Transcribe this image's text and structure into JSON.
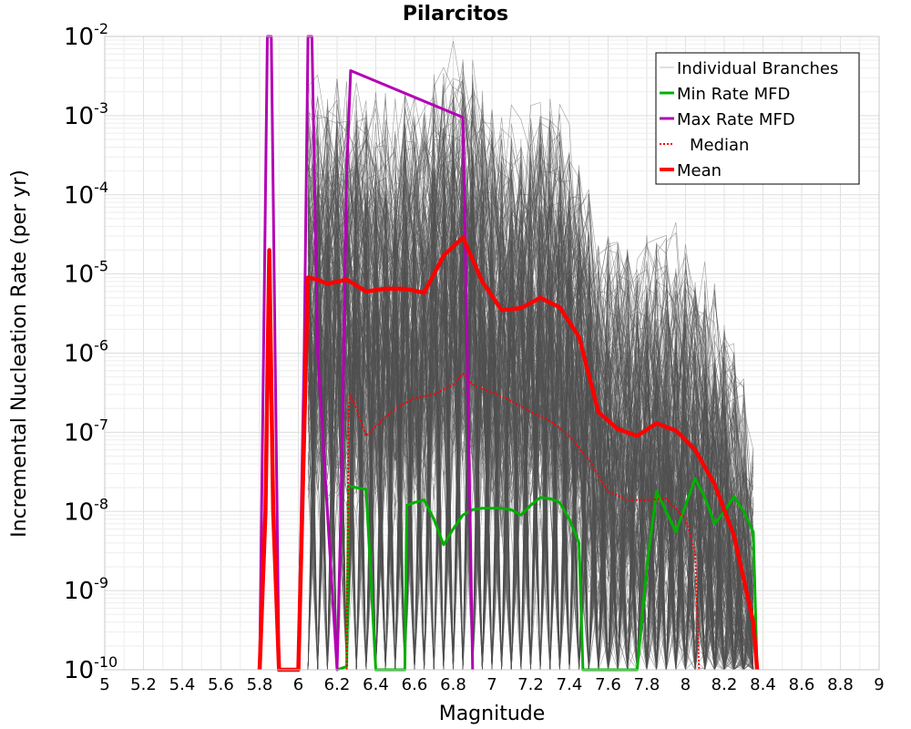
{
  "chart_data": {
    "type": "line",
    "title": "Pilarcitos",
    "xlabel": "Magnitude",
    "ylabel": "Incremental Nucleation Rate (per yr)",
    "xlim": [
      5,
      9
    ],
    "ylim": [
      1e-10,
      0.01
    ],
    "yscale": "log",
    "grid": true,
    "legend_position": "top-right",
    "x_ticks": [
      5,
      5.2,
      5.4,
      5.6,
      5.8,
      6,
      6.2,
      6.4,
      6.6,
      6.8,
      7,
      7.2,
      7.4,
      7.6,
      7.8,
      8,
      8.2,
      8.4,
      8.6,
      8.8,
      9
    ],
    "x_tick_labels": [
      "5",
      "5.2",
      "5.4",
      "5.6",
      "5.8",
      "6",
      "6.2",
      "6.4",
      "6.6",
      "6.8",
      "7",
      "7.2",
      "7.4",
      "7.6",
      "7.8",
      "8",
      "8.2",
      "8.4",
      "8.6",
      "8.8",
      "9"
    ],
    "y_ticks": [
      {
        "base": "10",
        "exp": "-10",
        "value": 1e-10
      },
      {
        "base": "10",
        "exp": "-9",
        "value": 1e-09
      },
      {
        "base": "10",
        "exp": "-8",
        "value": 1e-08
      },
      {
        "base": "10",
        "exp": "-7",
        "value": 1e-07
      },
      {
        "base": "10",
        "exp": "-6",
        "value": 1e-06
      },
      {
        "base": "10",
        "exp": "-5",
        "value": 1e-05
      },
      {
        "base": "10",
        "exp": "-4",
        "value": 0.0001
      },
      {
        "base": "10",
        "exp": "-3",
        "value": 0.001
      },
      {
        "base": "10",
        "exp": "-2",
        "value": 0.01
      }
    ],
    "series": [
      {
        "name": "Min Rate MFD",
        "color": "#00b000",
        "style": "solid",
        "points": [
          [
            6.2,
            1e-10
          ],
          [
            6.25,
            1.1e-10
          ],
          [
            6.26,
            2.1e-08
          ],
          [
            6.3,
            2e-08
          ],
          [
            6.35,
            1.9e-08
          ],
          [
            6.4,
            1e-10
          ],
          [
            6.55,
            1e-10
          ],
          [
            6.56,
            1.2e-08
          ],
          [
            6.6,
            1.3e-08
          ],
          [
            6.65,
            1.4e-08
          ],
          [
            6.7,
            8e-09
          ],
          [
            6.75,
            3.8e-09
          ],
          [
            6.8,
            6e-09
          ],
          [
            6.85,
            9e-09
          ],
          [
            6.9,
            1.05e-08
          ],
          [
            6.95,
            1.1e-08
          ],
          [
            7.0,
            1.1e-08
          ],
          [
            7.05,
            1.1e-08
          ],
          [
            7.1,
            1.05e-08
          ],
          [
            7.15,
            9e-09
          ],
          [
            7.2,
            1.2e-08
          ],
          [
            7.25,
            1.5e-08
          ],
          [
            7.3,
            1.45e-08
          ],
          [
            7.35,
            1.3e-08
          ],
          [
            7.4,
            8e-09
          ],
          [
            7.45,
            4e-09
          ],
          [
            7.47,
            1e-10
          ],
          [
            7.75,
            1e-10
          ],
          [
            7.8,
            2e-09
          ],
          [
            7.85,
            1.8e-08
          ],
          [
            7.9,
            1e-08
          ],
          [
            7.95,
            5.5e-09
          ],
          [
            8.0,
            1.2e-08
          ],
          [
            8.05,
            2.6e-08
          ],
          [
            8.1,
            1.5e-08
          ],
          [
            8.15,
            7e-09
          ],
          [
            8.2,
            1e-08
          ],
          [
            8.25,
            1.55e-08
          ],
          [
            8.3,
            1e-08
          ],
          [
            8.35,
            5.5e-09
          ],
          [
            8.37,
            1e-10
          ]
        ]
      },
      {
        "name": "Max Rate MFD",
        "color": "#b400b4",
        "style": "solid",
        "points": [
          [
            5.8,
            1e-10
          ],
          [
            5.82,
            1e-06
          ],
          [
            5.84,
            0.01
          ],
          [
            5.86,
            0.01
          ],
          [
            5.88,
            1e-06
          ],
          [
            5.9,
            1e-10
          ],
          [
            6.0,
            1e-10
          ],
          [
            6.03,
            1e-06
          ],
          [
            6.05,
            0.01
          ],
          [
            6.07,
            0.01
          ],
          [
            6.1,
            1e-06
          ],
          [
            6.2,
            1e-10
          ],
          [
            6.22,
            1e-08
          ],
          [
            6.25,
            0.0002
          ],
          [
            6.27,
            0.0037
          ],
          [
            6.85,
            0.00095
          ],
          [
            6.88,
            1e-07
          ],
          [
            6.9,
            1e-10
          ]
        ]
      },
      {
        "name": "Median",
        "color": "#ff0000",
        "style": "dotted",
        "points": [
          [
            6.25,
            1e-10
          ],
          [
            6.26,
            2e-07
          ],
          [
            6.27,
            3e-07
          ],
          [
            6.3,
            2e-07
          ],
          [
            6.35,
            9e-08
          ],
          [
            6.4,
            1.2e-07
          ],
          [
            6.5,
            2e-07
          ],
          [
            6.6,
            2.7e-07
          ],
          [
            6.7,
            3e-07
          ],
          [
            6.8,
            4e-07
          ],
          [
            6.85,
            5.5e-07
          ],
          [
            6.9,
            4e-07
          ],
          [
            7.0,
            3.2e-07
          ],
          [
            7.1,
            2.5e-07
          ],
          [
            7.2,
            1.8e-07
          ],
          [
            7.3,
            1.4e-07
          ],
          [
            7.4,
            9e-08
          ],
          [
            7.5,
            4.5e-08
          ],
          [
            7.6,
            1.8e-08
          ],
          [
            7.7,
            1.4e-08
          ],
          [
            7.8,
            1.4e-08
          ],
          [
            7.9,
            1.45e-08
          ],
          [
            8.0,
            8e-09
          ],
          [
            8.05,
            3e-09
          ],
          [
            8.07,
            1e-10
          ]
        ]
      },
      {
        "name": "Mean",
        "color": "#ff0000",
        "style": "solid",
        "points": [
          [
            5.8,
            1e-10
          ],
          [
            5.83,
            1e-08
          ],
          [
            5.85,
            2e-05
          ],
          [
            5.87,
            1e-08
          ],
          [
            5.9,
            1e-10
          ],
          [
            6.0,
            1e-10
          ],
          [
            6.05,
            9e-06
          ],
          [
            6.1,
            8.5e-06
          ],
          [
            6.15,
            7.5e-06
          ],
          [
            6.25,
            8.5e-06
          ],
          [
            6.35,
            6e-06
          ],
          [
            6.45,
            6.5e-06
          ],
          [
            6.55,
            6.5e-06
          ],
          [
            6.65,
            5.8e-06
          ],
          [
            6.75,
            1.7e-05
          ],
          [
            6.85,
            2.9e-05
          ],
          [
            6.95,
            8e-06
          ],
          [
            7.05,
            3.5e-06
          ],
          [
            7.15,
            3.7e-06
          ],
          [
            7.25,
            5e-06
          ],
          [
            7.35,
            3.8e-06
          ],
          [
            7.45,
            1.6e-06
          ],
          [
            7.55,
            1.8e-07
          ],
          [
            7.65,
            1.1e-07
          ],
          [
            7.75,
            9e-08
          ],
          [
            7.85,
            1.3e-07
          ],
          [
            7.95,
            1.05e-07
          ],
          [
            8.05,
            6e-08
          ],
          [
            8.15,
            2.2e-08
          ],
          [
            8.25,
            5e-09
          ],
          [
            8.35,
            4e-10
          ],
          [
            8.37,
            1e-10
          ]
        ]
      }
    ],
    "legend": [
      {
        "label": "Individual Branches",
        "color": "#c0c0c0",
        "style": "thin"
      },
      {
        "label": "Min Rate MFD",
        "color": "#00b000",
        "style": "solid"
      },
      {
        "label": "Max Rate MFD",
        "color": "#b400b4",
        "style": "solid"
      },
      {
        "label": "Median",
        "color": "#ff0000",
        "style": "dotted"
      },
      {
        "label": "Mean",
        "color": "#ff0000",
        "style": "thick"
      }
    ],
    "branches_color": "#505050"
  }
}
